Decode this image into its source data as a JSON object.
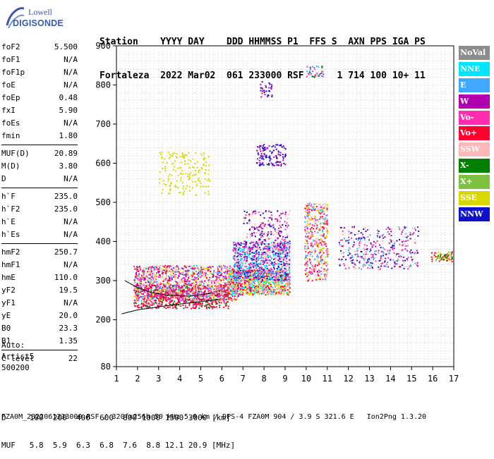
{
  "logo": {
    "line1": "Lowell",
    "line2": "DIGISONDE"
  },
  "header": {
    "line1": "Station    YYYY DAY    DDD HHMMSS P1  FFS S  AXN PPS IGA PS",
    "line2": "Fortaleza  2022 Mar02  061 233000 RSF      1 714 100 10+ 11"
  },
  "params": {
    "group1": [
      {
        "k": "foF2",
        "v": "5.500"
      },
      {
        "k": "foF1",
        "v": "N/A"
      },
      {
        "k": "foF1p",
        "v": "N/A"
      },
      {
        "k": "foE",
        "v": "N/A"
      },
      {
        "k": "foEp",
        "v": "0.48"
      },
      {
        "k": "fxI",
        "v": "5.90"
      },
      {
        "k": "foEs",
        "v": "N/A"
      },
      {
        "k": "fmin",
        "v": "1.80"
      }
    ],
    "group2": [
      {
        "k": "MUF(D)",
        "v": "20.89"
      },
      {
        "k": "M(D)",
        "v": "3.80"
      },
      {
        "k": "D",
        "v": "N/A"
      }
    ],
    "group3": [
      {
        "k": "h`F",
        "v": "235.0"
      },
      {
        "k": "h`F2",
        "v": "235.0"
      },
      {
        "k": "h`E",
        "v": "N/A"
      },
      {
        "k": "h`Es",
        "v": "N/A"
      }
    ],
    "group4": [
      {
        "k": "hmF2",
        "v": "250.7"
      },
      {
        "k": "hmF1",
        "v": "N/A"
      },
      {
        "k": "hmE",
        "v": "110.0"
      },
      {
        "k": "yF2",
        "v": "19.5"
      },
      {
        "k": "yF1",
        "v": "N/A"
      },
      {
        "k": "yE",
        "v": "20.0"
      },
      {
        "k": "B0",
        "v": "23.3"
      },
      {
        "k": "B1",
        "v": "1.35"
      }
    ],
    "group5": [
      {
        "k": "C-level",
        "v": "22"
      }
    ]
  },
  "extra": {
    "l1": "Auto:",
    "l2": "Artist5",
    "l3": "500200"
  },
  "legend": [
    {
      "name": "NoVal",
      "color": "#8c8c8c"
    },
    {
      "name": "NNE",
      "color": "#00e5ff"
    },
    {
      "name": "E",
      "color": "#40a8ff"
    },
    {
      "name": "W",
      "color": "#b000b0"
    },
    {
      "name": "Vo-",
      "color": "#ff2db0"
    },
    {
      "name": "Vo+",
      "color": "#ff0030"
    },
    {
      "name": "SSW",
      "color": "#ffb8b8"
    },
    {
      "name": "X-",
      "color": "#008000"
    },
    {
      "name": "X+",
      "color": "#80c040"
    },
    {
      "name": "SSE",
      "color": "#d8d800"
    },
    {
      "name": "NNW",
      "color": "#1010c8"
    }
  ],
  "footer": {
    "line1": "D     100  200  400  600  800 1000 1500 3000 [km]",
    "line2": "MUF   5.8  5.9  6.3  6.8  7.6  8.8 12.1 20.9 [MHz]"
  },
  "status": "FZA0M_2022061233000.RSF / 320fx256h 50 kHz 5.0 km / DPS-4 FZA0M 904 / 3.9 S 321.6 E   Ion2Png 1.3.20",
  "chart_data": {
    "type": "scatter",
    "xlim": [
      1,
      17
    ],
    "ylim": [
      80,
      900
    ],
    "xticks": [
      1,
      2,
      3,
      4,
      5,
      6,
      7,
      8,
      9,
      10,
      11,
      12,
      13,
      14,
      15,
      16,
      17
    ],
    "yticks": [
      80,
      200,
      300,
      400,
      500,
      600,
      700,
      800,
      900
    ],
    "grid": true,
    "clusters": [
      {
        "freq": [
          1.8,
          6.3
        ],
        "height": [
          230,
          290
        ],
        "colors": [
          "#ff0030",
          "#ff0030",
          "#ff2db0",
          "#008000"
        ],
        "n": 700
      },
      {
        "freq": [
          1.8,
          6.8
        ],
        "height": [
          250,
          340
        ],
        "colors": [
          "#ffb8b8",
          "#40a8ff",
          "#ff2db0",
          "#b000b0",
          "#d8d800",
          "#ff0030"
        ],
        "n": 1300
      },
      {
        "freq": [
          6.3,
          9.2
        ],
        "height": [
          265,
          330
        ],
        "colors": [
          "#d8d800",
          "#ff0030",
          "#ffb8b8",
          "#00e5ff"
        ],
        "n": 900
      },
      {
        "freq": [
          6.5,
          9.2
        ],
        "height": [
          300,
          400
        ],
        "colors": [
          "#40a8ff",
          "#00e5ff",
          "#ffb8b8",
          "#ff2db0",
          "#b000b0",
          "#1010c8"
        ],
        "n": 900
      },
      {
        "freq": [
          7.0,
          9.2
        ],
        "height": [
          380,
          480
        ],
        "colors": [
          "#ff2db0",
          "#b000b0",
          "#ffb8b8",
          "#1010c8"
        ],
        "n": 250
      },
      {
        "freq": [
          9.9,
          11.0
        ],
        "height": [
          300,
          500
        ],
        "colors": [
          "#d8d800",
          "#ff0030",
          "#ffb8b8",
          "#40a8ff",
          "#ff2db0"
        ],
        "n": 450
      },
      {
        "freq": [
          11.5,
          15.3
        ],
        "height": [
          330,
          440
        ],
        "colors": [
          "#ff2db0",
          "#40a8ff",
          "#1010c8",
          "#b000b0",
          "#ffb8b8"
        ],
        "n": 380
      },
      {
        "freq": [
          15.9,
          16.9
        ],
        "height": [
          350,
          375
        ],
        "colors": [
          "#008000",
          "#d8d800",
          "#80c040",
          "#ff0030"
        ],
        "n": 80
      },
      {
        "freq": [
          3.0,
          5.4
        ],
        "height": [
          520,
          630
        ],
        "colors": [
          "#d8d800"
        ],
        "n": 160
      },
      {
        "freq": [
          7.6,
          9.0
        ],
        "height": [
          595,
          650
        ],
        "colors": [
          "#1010c8",
          "#b000b0"
        ],
        "n": 120
      },
      {
        "freq": [
          7.8,
          8.4
        ],
        "height": [
          770,
          810
        ],
        "colors": [
          "#b000b0",
          "#1010c8"
        ],
        "n": 30
      },
      {
        "freq": [
          10.0,
          10.8
        ],
        "height": [
          820,
          850
        ],
        "colors": [
          "#008000",
          "#ff2db0",
          "#40a8ff"
        ],
        "n": 40
      }
    ],
    "traces": [
      {
        "name": "O-trace",
        "points": [
          [
            1.25,
            215
          ],
          [
            2,
            225
          ],
          [
            3,
            233
          ],
          [
            4,
            240
          ],
          [
            5,
            246
          ],
          [
            5.8,
            252
          ]
        ]
      },
      {
        "name": "X-trace",
        "points": [
          [
            1.4,
            300
          ],
          [
            1.9,
            285
          ],
          [
            2.6,
            270
          ],
          [
            3.5,
            262
          ],
          [
            4.5,
            260
          ],
          [
            5.5,
            268
          ]
        ]
      }
    ]
  }
}
